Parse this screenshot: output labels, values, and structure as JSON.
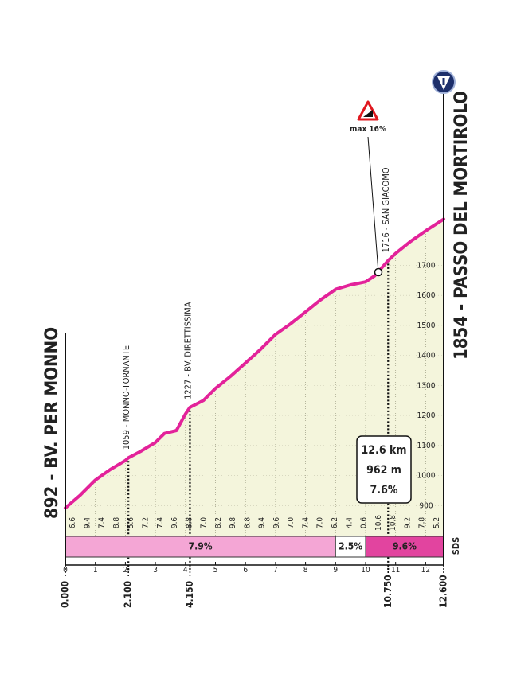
{
  "chart_data": {
    "type": "area",
    "title": "1854 - PASSO DEL MORTIROLO",
    "subtitle": "892 - BV. PER MONNO",
    "x": [
      0,
      0.5,
      1,
      1.5,
      2,
      2.1,
      2.5,
      3,
      3.3,
      3.7,
      4,
      4.15,
      4.6,
      5,
      5.5,
      6,
      6.5,
      7,
      7.5,
      8,
      8.5,
      9,
      9.5,
      10,
      10.3,
      10.75,
      11,
      11.5,
      12,
      12.6
    ],
    "values": [
      892,
      935,
      985,
      1020,
      1050,
      1059,
      1080,
      1110,
      1140,
      1150,
      1205,
      1227,
      1250,
      1290,
      1330,
      1375,
      1420,
      1470,
      1505,
      1545,
      1585,
      1620,
      1635,
      1645,
      1665,
      1716,
      1740,
      1780,
      1815,
      1854
    ],
    "color": "#e3229a",
    "fill_color": "#f4f5dc",
    "xlim": [
      0,
      12.6
    ],
    "ylim": [
      800,
      1900
    ],
    "xticks": [
      0,
      1,
      2,
      3,
      4,
      5,
      6,
      7,
      8,
      9,
      10,
      11,
      12
    ],
    "yticks": [
      900,
      1000,
      1100,
      1200,
      1300,
      1400,
      1500,
      1600,
      1700
    ],
    "grid": true,
    "key_distances": [
      {
        "value": 0,
        "label": "0.000"
      },
      {
        "value": 2.1,
        "label": "2.100"
      },
      {
        "value": 4.15,
        "label": "4.150"
      },
      {
        "value": 10.75,
        "label": "10.750"
      },
      {
        "value": 12.6,
        "label": "12.600"
      }
    ],
    "waypoints": [
      {
        "x": 2.1,
        "label": "1059 - MONNO-TORNANTE"
      },
      {
        "x": 4.15,
        "label": "1227 - BV. DIRETTISSIMA"
      },
      {
        "x": 10.75,
        "label": "1716 - SAN GIACOMO"
      }
    ],
    "grades": {
      "values": [
        6.6,
        9.4,
        7.4,
        8.8,
        5.6,
        7.2,
        7.4,
        9.6,
        8.8,
        7,
        8.2,
        9.8,
        8.8,
        9.4,
        9.6,
        7,
        7.4,
        7,
        6.2,
        4.4,
        0.6,
        10.6,
        10.8,
        9.2,
        7.8,
        5.2
      ],
      "value_labels": [
        "6.6",
        "9.4",
        "7.4",
        "8.8",
        "5.6",
        "7.2",
        "7.4",
        "9.6",
        "8.8",
        "7.0",
        "8.2",
        "9.8",
        "8.8",
        "9.4",
        "9.6",
        "7.0",
        "7.4",
        "7.0",
        "6.2",
        "4.4",
        "0.6",
        "10.6",
        "10.8",
        "9.2",
        "7.8",
        "5.2"
      ]
    },
    "sections": [
      {
        "from": 0,
        "to": 9,
        "value": 7.9,
        "label": "7.9%",
        "color": "#f4a6d5"
      },
      {
        "from": 9,
        "to": 10,
        "value": 2.5,
        "label": "2.5%",
        "color": "#ffffff"
      },
      {
        "from": 10,
        "to": 12.6,
        "value": 9.6,
        "label": "9.6%",
        "color": "#e2449f"
      }
    ],
    "summary": [
      "12.6 km",
      "962 m",
      "7.6%"
    ],
    "max_label": "max 16%",
    "sds": "SDS"
  }
}
